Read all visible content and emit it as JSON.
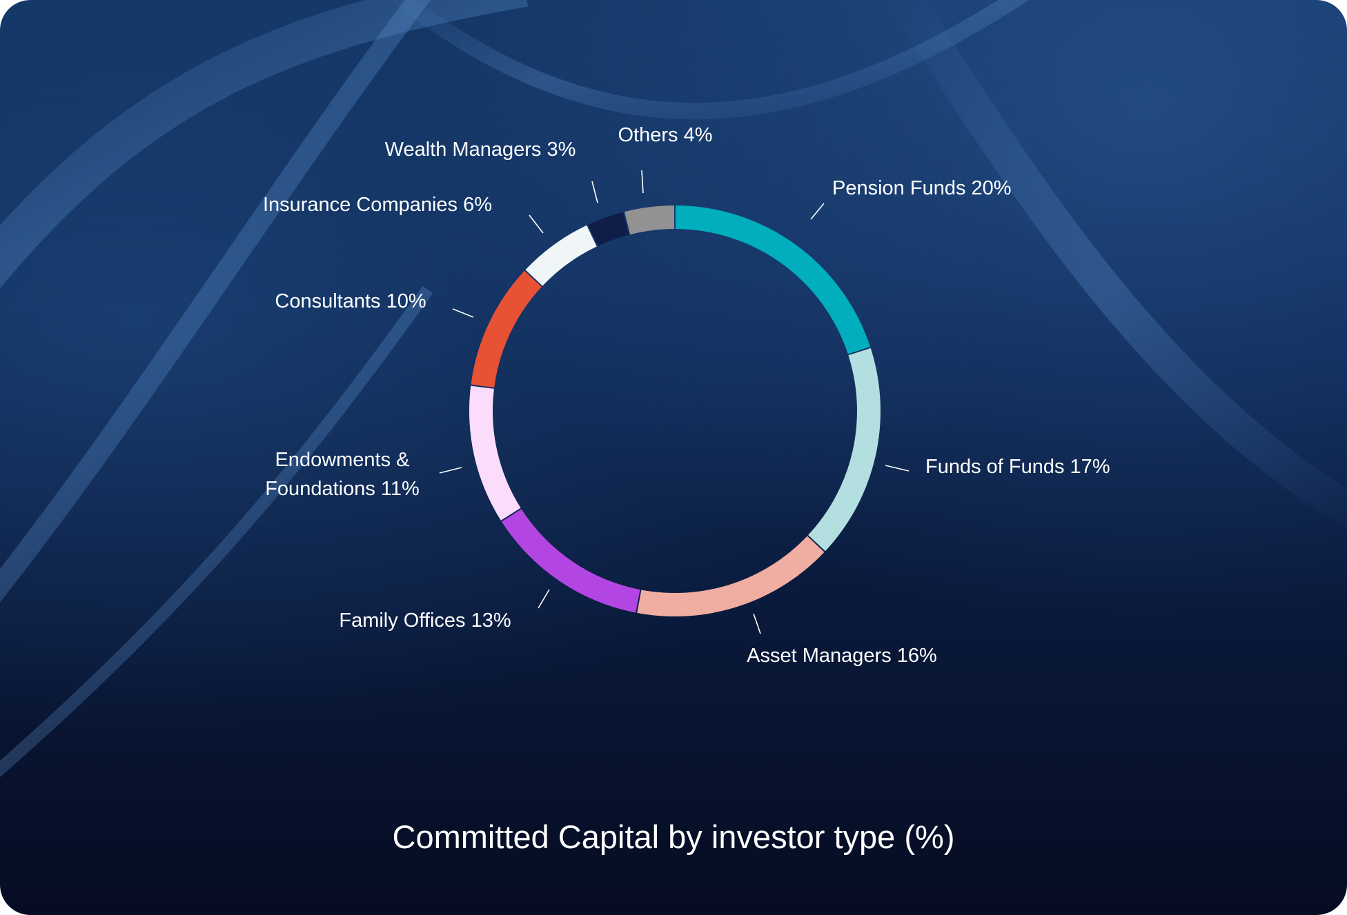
{
  "chart_data": {
    "type": "pie",
    "title": "Committed Capital by investor type (%)",
    "categories": [
      "Pension Funds",
      "Funds of Funds",
      "Asset Managers",
      "Family Offices",
      "Endowments & Foundations",
      "Consultants",
      "Insurance Companies",
      "Wealth Managers",
      "Others"
    ],
    "values": [
      20,
      17,
      16,
      13,
      11,
      10,
      6,
      3,
      4
    ],
    "value_labels": [
      "20%",
      "17%",
      "16%",
      "13%",
      "11%",
      "10%",
      "6%",
      "3%",
      "4%"
    ],
    "labels": [
      [
        "Pension Funds 20%"
      ],
      [
        "Funds of Funds 17%"
      ],
      [
        "Asset Managers 16%"
      ],
      [
        "Family Offices 13%"
      ],
      [
        "Endowments &",
        "Foundations 11%"
      ],
      [
        "Consultants 10%"
      ],
      [
        "Insurance Companies 6%"
      ],
      [
        "Wealth Managers 3%"
      ],
      [
        "Others 4%"
      ]
    ],
    "colors": [
      "#00aebd",
      "#b3dfe0",
      "#f0ada1",
      "#b346e2",
      "#fcdcfb",
      "#e85234",
      "#f0f5f8",
      "#0e1e48",
      "#929292"
    ],
    "style": "donut",
    "legend": "none"
  }
}
